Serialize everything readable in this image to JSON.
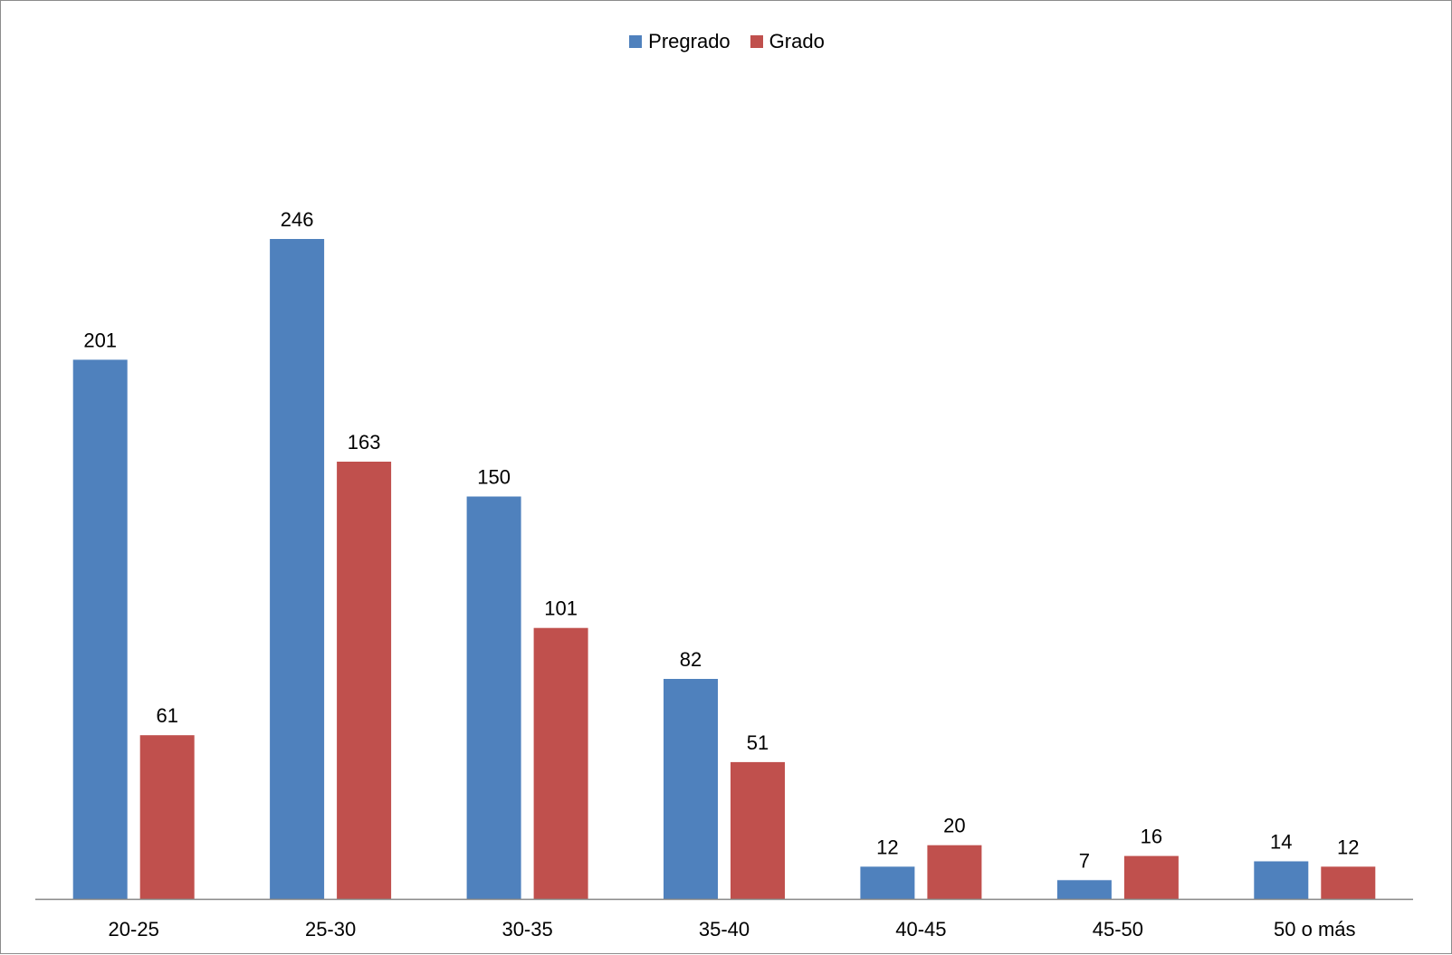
{
  "chart_data": {
    "type": "bar",
    "categories": [
      "20-25",
      "25-30",
      "30-35",
      "35-40",
      "40-45",
      "45-50",
      "50 o más"
    ],
    "series": [
      {
        "name": "Pregrado",
        "color": "#4F81BD",
        "values": [
          201,
          246,
          150,
          82,
          12,
          7,
          14
        ]
      },
      {
        "name": "Grado",
        "color": "#C0504D",
        "values": [
          61,
          163,
          101,
          51,
          20,
          16,
          12
        ]
      }
    ],
    "title": "",
    "xlabel": "",
    "ylabel": "",
    "ylim": [
      0,
      246
    ],
    "grid": false,
    "legend": "top-center",
    "data_labels": true,
    "axis_color": "#868686"
  }
}
